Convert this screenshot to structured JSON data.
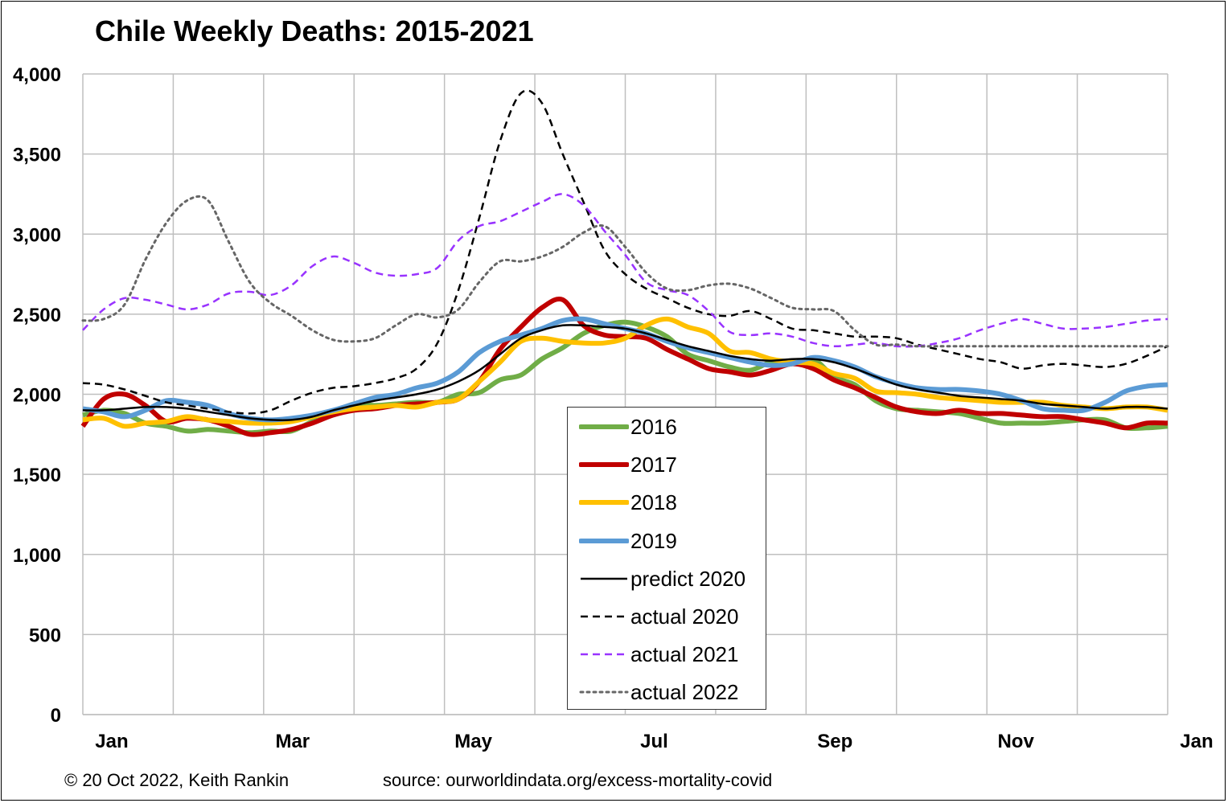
{
  "title": "Chile Weekly Deaths: 2015-2021",
  "footer": {
    "copyright": "© 20 Oct 2022, Keith Rankin",
    "source": "source: ourworldindata.org/excess-mortality-covid"
  },
  "chart_data": {
    "type": "line",
    "title": "Chile Weekly Deaths: 2015-2021",
    "xlabel": "",
    "ylabel": "",
    "ylim": [
      0,
      4000
    ],
    "yticks": [
      0,
      500,
      1000,
      1500,
      2000,
      2500,
      3000,
      3500,
      4000
    ],
    "ytick_labels": [
      "0",
      "500",
      "1,000",
      "1,500",
      "2,000",
      "2,500",
      "3,000",
      "3,500",
      "4,000"
    ],
    "xlim": [
      1,
      53
    ],
    "x_unit": "week",
    "xtick_labels": [
      "Jan",
      "Mar",
      "May",
      "Jul",
      "Sep",
      "Nov",
      "Jan"
    ],
    "grid": true,
    "legend_position": "center-bottom",
    "x": [
      1,
      2,
      3,
      4,
      5,
      6,
      7,
      8,
      9,
      10,
      11,
      12,
      13,
      14,
      15,
      16,
      17,
      18,
      19,
      20,
      21,
      22,
      23,
      24,
      25,
      26,
      27,
      28,
      29,
      30,
      31,
      32,
      33,
      34,
      35,
      36,
      37,
      38,
      39,
      40,
      41,
      42,
      43,
      44,
      45,
      46,
      47,
      48,
      49,
      50,
      51,
      52,
      53
    ],
    "series": [
      {
        "name": "2016",
        "color": "#70AD47",
        "style": "solid",
        "width": 6,
        "values": [
          1870,
          1900,
          1880,
          1820,
          1800,
          1770,
          1780,
          1770,
          1760,
          1770,
          1770,
          1830,
          1880,
          1940,
          1930,
          1940,
          1950,
          1950,
          2000,
          2010,
          2090,
          2120,
          2220,
          2290,
          2380,
          2430,
          2450,
          2420,
          2360,
          2250,
          2210,
          2170,
          2150,
          2200,
          2190,
          2220,
          2110,
          2060,
          1960,
          1910,
          1900,
          1890,
          1880,
          1850,
          1820,
          1820,
          1820,
          1830,
          1840,
          1840,
          1790,
          1790,
          1800
        ]
      },
      {
        "name": "2017",
        "color": "#C00000",
        "style": "solid",
        "width": 6,
        "values": [
          1800,
          1970,
          2000,
          1930,
          1830,
          1850,
          1840,
          1800,
          1750,
          1760,
          1780,
          1820,
          1870,
          1900,
          1910,
          1930,
          1940,
          1950,
          1970,
          2080,
          2280,
          2420,
          2540,
          2590,
          2430,
          2370,
          2360,
          2350,
          2280,
          2220,
          2160,
          2140,
          2120,
          2150,
          2190,
          2160,
          2090,
          2040,
          1980,
          1920,
          1890,
          1880,
          1900,
          1880,
          1880,
          1870,
          1860,
          1860,
          1840,
          1820,
          1790,
          1820,
          1820
        ]
      },
      {
        "name": "2018",
        "color": "#FFC000",
        "style": "solid",
        "width": 6,
        "values": [
          1840,
          1850,
          1800,
          1820,
          1830,
          1860,
          1840,
          1830,
          1820,
          1820,
          1830,
          1860,
          1890,
          1910,
          1920,
          1930,
          1920,
          1950,
          1970,
          2080,
          2200,
          2330,
          2350,
          2330,
          2320,
          2320,
          2350,
          2430,
          2470,
          2420,
          2380,
          2270,
          2260,
          2220,
          2200,
          2190,
          2130,
          2100,
          2020,
          2010,
          2000,
          1980,
          1970,
          1960,
          1950,
          1950,
          1950,
          1930,
          1920,
          1910,
          1920,
          1920,
          1900
        ]
      },
      {
        "name": "2019",
        "color": "#5B9BD5",
        "style": "solid",
        "width": 6,
        "values": [
          1910,
          1890,
          1860,
          1900,
          1960,
          1950,
          1930,
          1880,
          1850,
          1840,
          1850,
          1870,
          1900,
          1940,
          1980,
          2000,
          2040,
          2070,
          2140,
          2260,
          2330,
          2370,
          2410,
          2460,
          2470,
          2440,
          2410,
          2380,
          2330,
          2290,
          2260,
          2230,
          2200,
          2180,
          2190,
          2230,
          2210,
          2170,
          2110,
          2070,
          2040,
          2030,
          2030,
          2020,
          2000,
          1960,
          1910,
          1900,
          1900,
          1950,
          2020,
          2050,
          2060
        ]
      },
      {
        "name": "predict 2020",
        "color": "#000000",
        "style": "solid",
        "width": 2.5,
        "values": [
          1900,
          1900,
          1910,
          1920,
          1920,
          1910,
          1890,
          1870,
          1850,
          1840,
          1840,
          1860,
          1900,
          1930,
          1960,
          1980,
          2000,
          2030,
          2080,
          2150,
          2250,
          2350,
          2400,
          2430,
          2430,
          2420,
          2410,
          2380,
          2340,
          2300,
          2270,
          2240,
          2220,
          2210,
          2220,
          2220,
          2200,
          2160,
          2110,
          2060,
          2030,
          2010,
          1990,
          1980,
          1970,
          1960,
          1940,
          1930,
          1920,
          1910,
          1920,
          1920,
          1910
        ]
      },
      {
        "name": "actual 2020",
        "color": "#000000",
        "style": "dashed",
        "width": 2.5,
        "values": [
          2070,
          2060,
          2030,
          1990,
          1950,
          1930,
          1910,
          1890,
          1880,
          1900,
          1960,
          2010,
          2040,
          2050,
          2070,
          2100,
          2160,
          2320,
          2650,
          3100,
          3580,
          3880,
          3820,
          3500,
          3200,
          2900,
          2750,
          2660,
          2600,
          2540,
          2500,
          2490,
          2520,
          2470,
          2410,
          2400,
          2380,
          2360,
          2360,
          2350,
          2310,
          2280,
          2250,
          2220,
          2200,
          2160,
          2180,
          2190,
          2180,
          2170,
          2190,
          2240,
          2300
        ]
      },
      {
        "name": "actual 2021",
        "color": "#9933FF",
        "style": "dashed",
        "width": 2.5,
        "values": [
          2400,
          2530,
          2600,
          2590,
          2560,
          2530,
          2560,
          2630,
          2640,
          2620,
          2680,
          2800,
          2860,
          2820,
          2760,
          2740,
          2750,
          2790,
          2960,
          3050,
          3080,
          3140,
          3200,
          3250,
          3180,
          3020,
          2870,
          2700,
          2650,
          2620,
          2520,
          2390,
          2370,
          2380,
          2360,
          2320,
          2300,
          2310,
          2320,
          2300,
          2300,
          2320,
          2350,
          2400,
          2440,
          2470,
          2440,
          2410,
          2410,
          2420,
          2440,
          2460,
          2470
        ]
      },
      {
        "name": "actual 2022",
        "color": "#666666",
        "style": "dotted",
        "width": 3,
        "values": [
          2460,
          2470,
          2560,
          2840,
          3070,
          3210,
          3210,
          2950,
          2700,
          2570,
          2490,
          2400,
          2340,
          2330,
          2350,
          2430,
          2500,
          2480,
          2530,
          2700,
          2830,
          2830,
          2860,
          2920,
          3010,
          3050,
          2920,
          2760,
          2660,
          2650,
          2680,
          2690,
          2660,
          2600,
          2540,
          2530,
          2520,
          2400,
          2310,
          2310,
          2300,
          2300,
          2300,
          2300,
          2300,
          2300,
          2300,
          2300,
          2300,
          2300,
          2300,
          2300,
          2300
        ]
      }
    ]
  }
}
